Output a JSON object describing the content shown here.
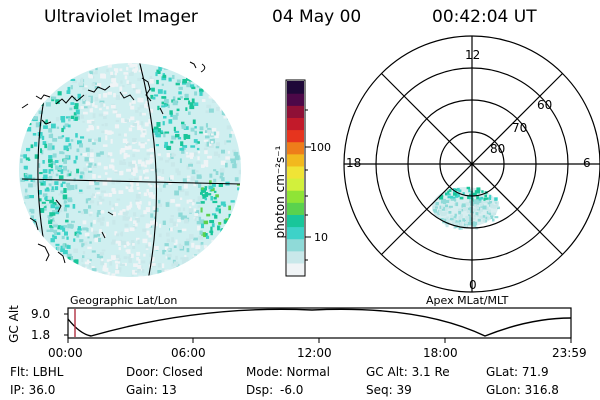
{
  "header": {
    "instrument": "Ultraviolet Imager",
    "date": "04 May 00",
    "time": "00:42:04 UT"
  },
  "colorbar": {
    "unit_label": "photon cm⁻²s⁻¹",
    "tick_labels": [
      "100",
      "10"
    ],
    "colors": [
      "#f0f4f6",
      "#c9e8ea",
      "#8fdad8",
      "#3ed2c8",
      "#19c69a",
      "#5ad24e",
      "#8fe436",
      "#d2f03c",
      "#f0e436",
      "#f2b91e",
      "#ee7d1a",
      "#e6341e",
      "#c21a2a",
      "#8f1036",
      "#4c0848",
      "#1e0838"
    ]
  },
  "geo_map": {
    "caption": "Geographic Lat/Lon"
  },
  "polar_plot": {
    "caption": "Apex MLat/MLT",
    "mlt_labels": [
      "12",
      "18",
      "6",
      "0"
    ],
    "lat_labels": [
      "60",
      "70",
      "80"
    ]
  },
  "altitude_plot": {
    "ylabel": "GC Alt",
    "ytick_labels": [
      "9.0",
      "1.8"
    ],
    "xtick_labels": [
      "00:00",
      "06:00",
      "12:00",
      "18:00",
      "23:59"
    ],
    "cursor_color": "#b03040"
  },
  "status": {
    "filter": "Flt: LBHL",
    "door": "Door: Closed",
    "mode": "Mode: Normal",
    "gc_alt": "GC Alt: 3.1 Re",
    "glat": "GLat: 71.9",
    "ip": "IP: 36.0",
    "gain": "Gain: 13",
    "dsp_label": "Dsp:",
    "dsp_value": "-6.0",
    "seq": "Seq: 39",
    "glon": "GLon: 316.8"
  }
}
